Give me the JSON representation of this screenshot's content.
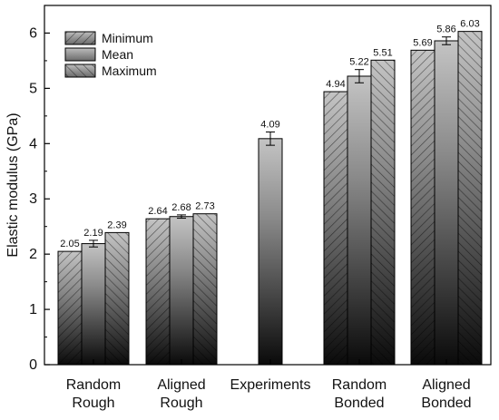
{
  "chart_data": {
    "type": "bar",
    "ylabel": "Elastic modulus (GPa)",
    "xlabel": "",
    "ylim": [
      0,
      6.5
    ],
    "yticks": [
      0,
      1,
      2,
      3,
      4,
      5,
      6
    ],
    "categories": [
      [
        "Random",
        "Rough"
      ],
      [
        "Aligned",
        "Rough"
      ],
      [
        "Experiments"
      ],
      [
        "Random",
        "Bonded"
      ],
      [
        "Aligned",
        "Bonded"
      ]
    ],
    "series": [
      {
        "name": "Minimum",
        "pattern": "hatch-right",
        "values": [
          2.05,
          2.64,
          null,
          4.94,
          5.69
        ]
      },
      {
        "name": "Mean",
        "pattern": "solid-gradient",
        "values": [
          2.19,
          2.68,
          4.09,
          5.22,
          5.86
        ],
        "errors": [
          0.06,
          0.03,
          0.12,
          0.12,
          0.07
        ]
      },
      {
        "name": "Maximum",
        "pattern": "hatch-left",
        "values": [
          2.39,
          2.73,
          null,
          5.51,
          6.03
        ]
      }
    ],
    "data_labels": [
      [
        "2.05",
        "2.64",
        null,
        "4.94",
        "5.69"
      ],
      [
        "2.19",
        "2.68",
        "4.09",
        "5.22",
        "5.86"
      ],
      [
        "2.39",
        "2.73",
        null,
        "5.51",
        "6.03"
      ]
    ],
    "legend": {
      "position": "top-left",
      "entries": [
        "Minimum",
        "Mean",
        "Maximum"
      ]
    },
    "grid": false,
    "colors": {
      "bar_top": "#c4c4c4",
      "bar_bottom": "#0a0a0a",
      "outline": "#000000"
    }
  }
}
